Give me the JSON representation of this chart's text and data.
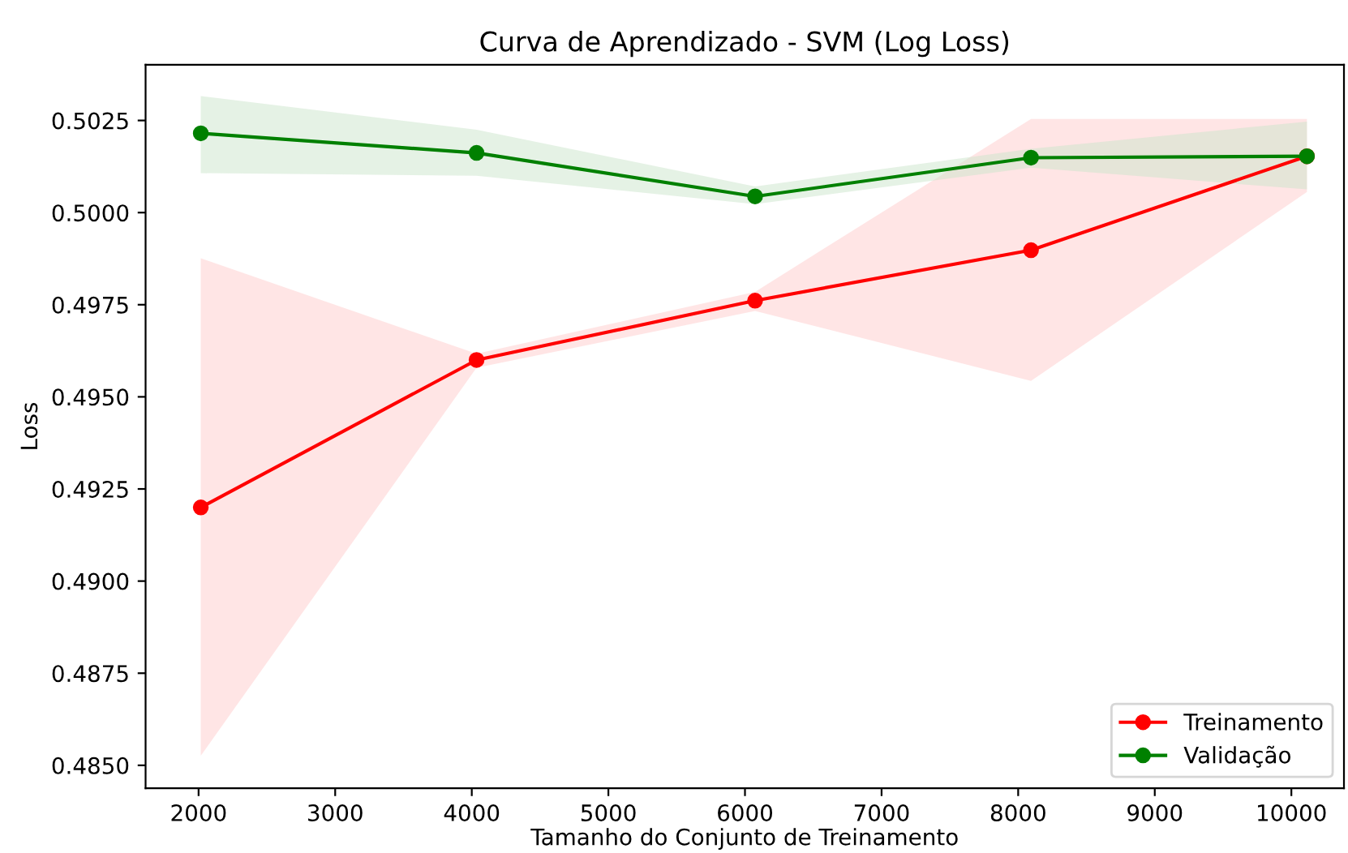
{
  "chart_data": {
    "type": "line",
    "title": "Curva de Aprendizado - SVM (Log Loss)",
    "xlabel": "Tamanho do Conjunto de Treinamento",
    "ylabel": "Loss",
    "x": [
      2016,
      4035,
      6074,
      8094,
      10114
    ],
    "series": [
      {
        "name": "Treinamento",
        "color": "#ff0000",
        "values": [
          0.492,
          0.496,
          0.49761,
          0.49898,
          0.50153
        ],
        "lower": [
          0.48526,
          0.49579,
          0.49733,
          0.49543,
          0.50056
        ],
        "upper": [
          0.49876,
          0.49617,
          0.49785,
          0.50254,
          0.50254
        ]
      },
      {
        "name": "Validação",
        "color": "#008000",
        "values": [
          0.50215,
          0.50162,
          0.50044,
          0.50149,
          0.50153
        ],
        "lower": [
          0.50107,
          0.501,
          0.50023,
          0.50122,
          0.50063
        ],
        "upper": [
          0.50316,
          0.50225,
          0.50071,
          0.50173,
          0.50247
        ]
      }
    ],
    "xlim": [
      1612,
      10385
    ],
    "ylim": [
      0.48438,
      0.50401
    ],
    "xticks": [
      2000,
      3000,
      4000,
      5000,
      6000,
      7000,
      8000,
      9000,
      10000
    ],
    "yticks": [
      {
        "value": 0.485,
        "label": "0.4850"
      },
      {
        "value": 0.4875,
        "label": "0.4875"
      },
      {
        "value": 0.49,
        "label": "0.4900"
      },
      {
        "value": 0.4925,
        "label": "0.4925"
      },
      {
        "value": 0.495,
        "label": "0.4950"
      },
      {
        "value": 0.4975,
        "label": "0.4975"
      },
      {
        "value": 0.5,
        "label": "0.5000"
      },
      {
        "value": 0.5025,
        "label": "0.5025"
      }
    ],
    "marker": "circle",
    "line_style": "solid",
    "legend": "lower right",
    "grid": false
  }
}
